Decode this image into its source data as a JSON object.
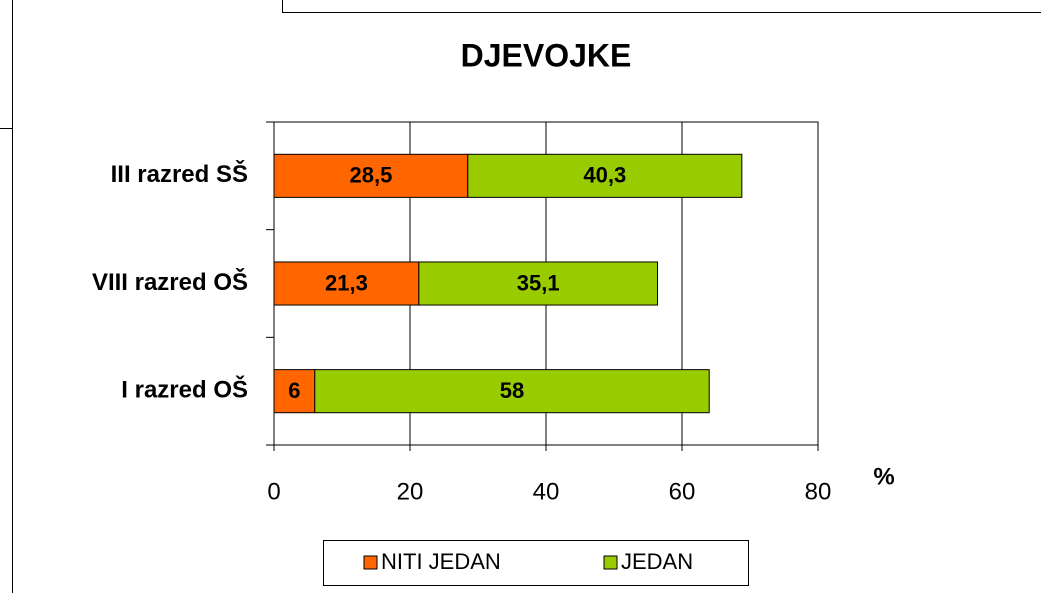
{
  "chart_data": {
    "type": "bar",
    "orientation": "horizontal",
    "stacked": true,
    "title": "DJEVOJKE",
    "categories": [
      "III razred SŠ",
      "VIII razred OŠ",
      "I razred OŠ"
    ],
    "series": [
      {
        "name": "NITI JEDAN",
        "color": "#ff6600",
        "values": [
          28.5,
          21.3,
          6
        ],
        "value_labels": [
          "28,5",
          "21,3",
          "6"
        ]
      },
      {
        "name": "JEDAN",
        "color": "#99cc00",
        "values": [
          40.3,
          35.1,
          58
        ],
        "value_labels": [
          "40,3",
          "35,1",
          "58"
        ]
      }
    ],
    "xlabel": "%",
    "xlim": [
      0,
      80
    ],
    "xticks": [
      0,
      20,
      40,
      60,
      80
    ],
    "grid": true,
    "legend": "bottom"
  }
}
